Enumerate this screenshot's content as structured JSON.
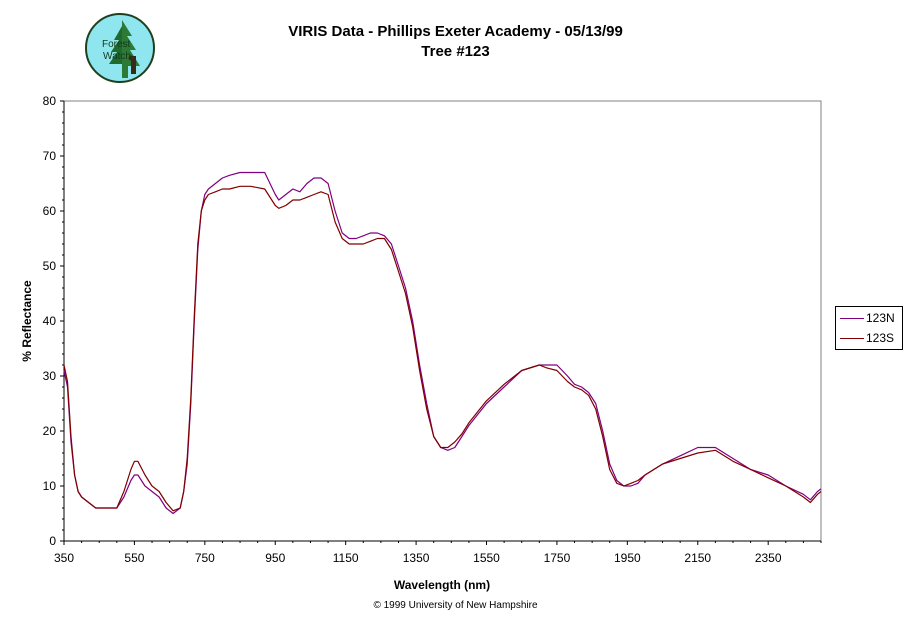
{
  "header": {
    "title_line1": "VIRIS Data - Phillips Exeter Academy - 05/13/99",
    "title_line2": "Tree #123"
  },
  "logo": {
    "text_line1": "Forest",
    "text_line2": "Watch"
  },
  "footer": {
    "copyright": "© 1999 University of New Hampshire"
  },
  "colors": {
    "series_123N": "#800080",
    "series_123S": "#800000",
    "logo_sky": "#8fe6ee",
    "logo_tree": "#1f6b2e"
  },
  "chart_data": {
    "type": "line",
    "title": "VIRIS Data - Phillips Exeter Academy - 05/13/99",
    "subtitle": "Tree #123",
    "xlabel": "Wavelength (nm)",
    "ylabel": "% Reflectance",
    "xlim": [
      350,
      2500
    ],
    "ylim": [
      0,
      80
    ],
    "xticks": [
      350,
      550,
      750,
      950,
      1150,
      1350,
      1550,
      1750,
      1950,
      2150,
      2350
    ],
    "yticks": [
      0,
      10,
      20,
      30,
      40,
      50,
      60,
      70,
      80
    ],
    "grid": false,
    "legend_position": "right",
    "series": [
      {
        "name": "123N",
        "color": "#800080",
        "x": [
          350,
          360,
          370,
          380,
          390,
          400,
          420,
          440,
          460,
          480,
          500,
          520,
          540,
          550,
          560,
          580,
          600,
          620,
          640,
          660,
          680,
          690,
          700,
          710,
          720,
          730,
          740,
          750,
          760,
          780,
          800,
          820,
          850,
          880,
          920,
          950,
          960,
          980,
          1000,
          1020,
          1040,
          1060,
          1080,
          1100,
          1120,
          1140,
          1160,
          1180,
          1200,
          1220,
          1240,
          1260,
          1280,
          1300,
          1320,
          1340,
          1360,
          1380,
          1400,
          1420,
          1440,
          1460,
          1480,
          1500,
          1550,
          1600,
          1650,
          1700,
          1720,
          1750,
          1780,
          1800,
          1820,
          1840,
          1860,
          1880,
          1900,
          1920,
          1940,
          1960,
          1980,
          2000,
          2050,
          2100,
          2150,
          2200,
          2250,
          2300,
          2350,
          2400,
          2450,
          2470,
          2490,
          2500
        ],
        "y": [
          31,
          28,
          18,
          12,
          9,
          8,
          7,
          6,
          6,
          6,
          6,
          8,
          11,
          12,
          12,
          10,
          9,
          8,
          6,
          5,
          6,
          9,
          14,
          25,
          40,
          53,
          60,
          63,
          64,
          65,
          66,
          66.5,
          67,
          67,
          67,
          63,
          62,
          63,
          64,
          63.5,
          65,
          66,
          66,
          65,
          60,
          56,
          55,
          55,
          55.5,
          56,
          56,
          55.5,
          54,
          50,
          46,
          40,
          32,
          25,
          19,
          17,
          16.5,
          17,
          19,
          21,
          25,
          28,
          31,
          32,
          32,
          32,
          30,
          28.5,
          28,
          27,
          25,
          20,
          14,
          11,
          10,
          10,
          10.5,
          12,
          14,
          15.5,
          17,
          17,
          15,
          13,
          12,
          10,
          8.5,
          7.5,
          9,
          9.5
        ]
      },
      {
        "name": "123S",
        "color": "#800000",
        "x": [
          350,
          360,
          370,
          380,
          390,
          400,
          420,
          440,
          460,
          480,
          500,
          520,
          540,
          550,
          560,
          580,
          600,
          620,
          640,
          660,
          680,
          690,
          700,
          710,
          720,
          730,
          740,
          750,
          760,
          780,
          800,
          820,
          850,
          880,
          920,
          950,
          960,
          980,
          1000,
          1020,
          1040,
          1060,
          1080,
          1100,
          1120,
          1140,
          1160,
          1180,
          1200,
          1220,
          1240,
          1260,
          1280,
          1300,
          1320,
          1340,
          1360,
          1380,
          1400,
          1420,
          1440,
          1460,
          1480,
          1500,
          1550,
          1600,
          1650,
          1700,
          1720,
          1750,
          1780,
          1800,
          1820,
          1840,
          1860,
          1880,
          1900,
          1920,
          1940,
          1960,
          1980,
          2000,
          2050,
          2100,
          2150,
          2200,
          2250,
          2300,
          2350,
          2400,
          2450,
          2470,
          2490,
          2500
        ],
        "y": [
          32,
          29,
          19,
          12,
          9,
          8,
          7,
          6,
          6,
          6,
          6,
          9,
          13,
          14.5,
          14.5,
          12,
          10,
          9,
          7,
          5.5,
          6,
          9,
          15,
          26,
          41,
          54,
          60,
          62,
          63,
          63.5,
          64,
          64,
          64.5,
          64.5,
          64,
          61,
          60.5,
          61,
          62,
          62,
          62.5,
          63,
          63.5,
          63,
          58,
          55,
          54,
          54,
          54,
          54.5,
          55,
          55,
          53,
          49,
          45,
          39,
          31,
          24,
          19,
          17,
          17,
          18,
          19.5,
          21.5,
          25.5,
          28.5,
          31,
          32,
          31.5,
          31,
          29,
          28,
          27.5,
          26.5,
          24,
          19,
          13,
          10.5,
          10,
          10.5,
          11,
          12,
          14,
          15,
          16,
          16.5,
          14.5,
          13,
          11.5,
          10,
          8,
          7,
          8.5,
          9
        ]
      }
    ]
  }
}
